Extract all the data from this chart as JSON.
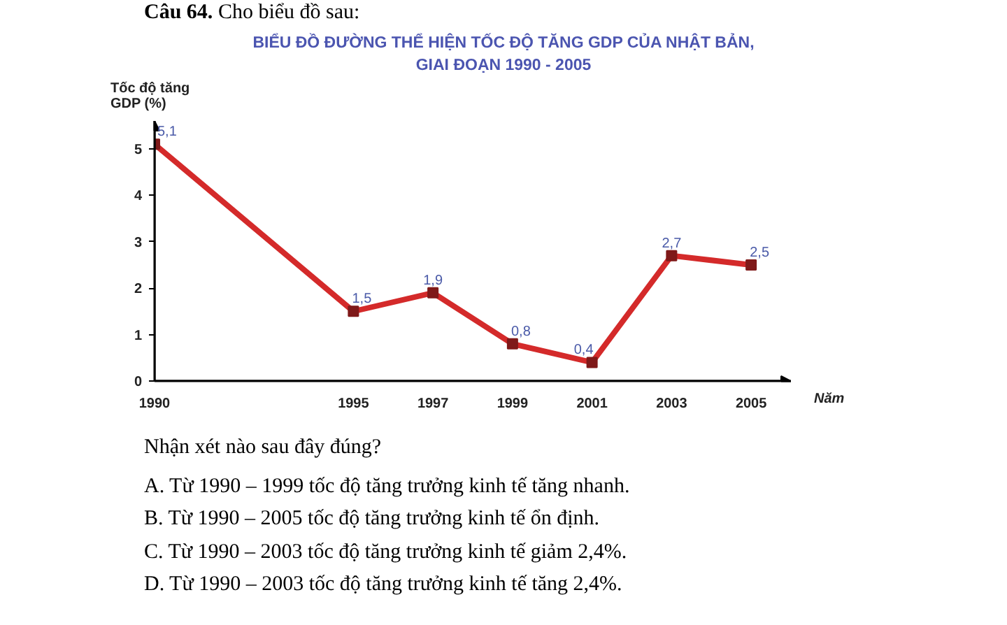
{
  "chart_data": {
    "type": "line",
    "title": "BIỂU ĐỒ ĐƯỜNG THỂ HIỆN TỐC ĐỘ TĂNG GDP CỦA NHẬT BẢN, GIAI ĐOẠN 1990 - 2005",
    "xlabel": "Năm",
    "ylabel": "Tốc độ tăng GDP (%)",
    "x": [
      1990,
      1995,
      1997,
      1999,
      2001,
      2003,
      2005
    ],
    "series": [
      {
        "color": "#d42a2a",
        "values": [
          5.1,
          1.5,
          1.9,
          0.8,
          0.4,
          2.7,
          2.5
        ],
        "value_labels": [
          "5,1",
          "1,5",
          "1,9",
          "0,8",
          "0,4",
          "2,7",
          "2,5"
        ]
      }
    ],
    "xlim": [
      1990,
      2006
    ],
    "xticks": [
      1990,
      1995,
      1997,
      1999,
      2001,
      2003,
      2005
    ],
    "ylim": [
      0,
      5.6
    ],
    "yticks": [
      0,
      1,
      2,
      3,
      4,
      5
    ],
    "grid": false,
    "marker": "square",
    "line_style": "solid",
    "annotations": [
      "Câu 64.",
      "Cho biểu đồ sau:",
      "Nhận xét nào sau đây đúng?",
      "A. Từ 1990 – 1999 tốc độ tăng trưởng kinh tế tăng nhanh.",
      "B. Từ 1990 – 2005 tốc độ tăng trưởng kinh tế ổn định.",
      "C. Từ 1990 – 2003 tốc độ tăng trưởng kinh tế giảm 2,4%.",
      "D. Từ 1990 – 2003 tốc độ tăng trưởng kinh tế tăng 2,4%."
    ]
  }
}
